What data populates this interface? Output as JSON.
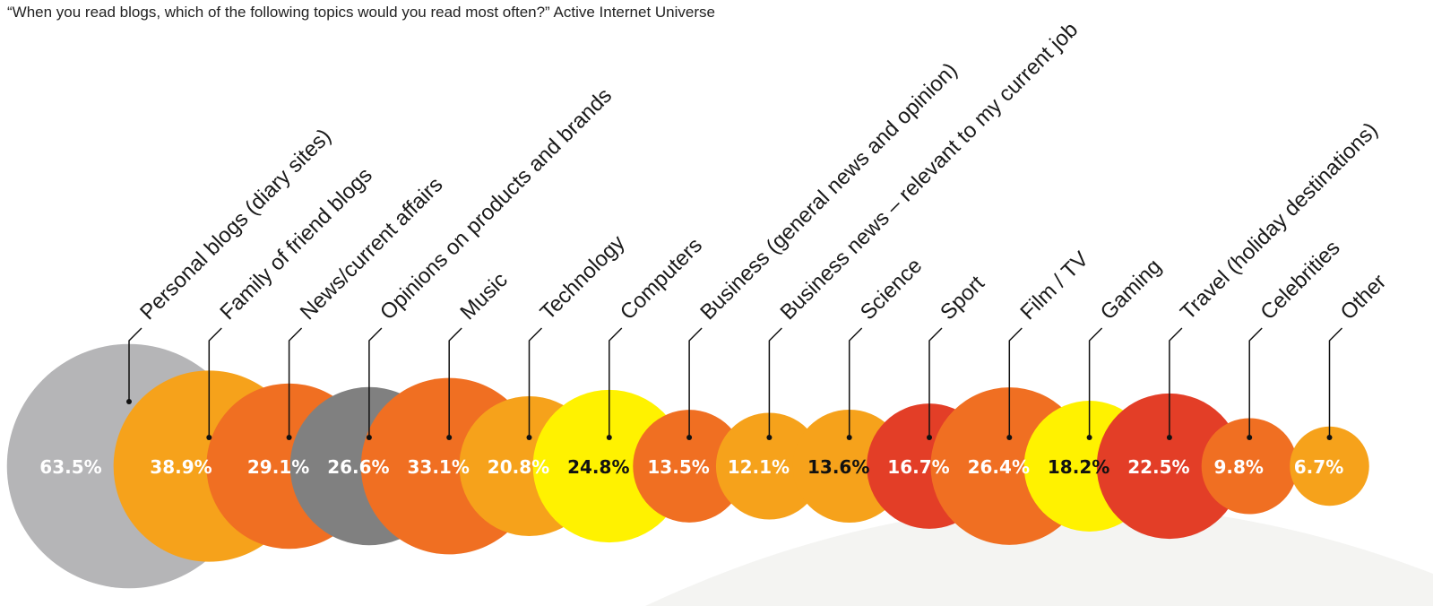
{
  "chart_data": {
    "type": "bubble",
    "title": "“When you read blogs, which of the following topics would you read most often?” Active Internet Universe",
    "unit": "%",
    "categories": [
      "Personal blogs (diary sites)",
      "Family of friend blogs",
      "News/current affairs",
      "Opinions on products and brands",
      "Music",
      "Technology",
      "Computers",
      "Business (general news and opinion)",
      "Business news – relevant to my current job",
      "Science",
      "Sport",
      "Film / TV",
      "Gaming",
      "Travel (holiday destinations)",
      "Celebrities",
      "Other"
    ],
    "values": [
      63.5,
      38.9,
      29.1,
      26.6,
      33.1,
      20.8,
      24.8,
      13.5,
      12.1,
      13.6,
      16.7,
      26.4,
      18.2,
      22.5,
      9.8,
      6.7
    ],
    "value_labels": [
      "63.5%",
      "38.9%",
      "29.1%",
      "26.6%",
      "33.1%",
      "20.8%",
      "24.8%",
      "13.5%",
      "12.1%",
      "13.6%",
      "16.7%",
      "26.4%",
      "18.2%",
      "22.5%",
      "9.8%",
      "6.7%"
    ],
    "colors": [
      "#b5b5b7",
      "#f6a21b",
      "#f06f22",
      "#808080",
      "#f06f22",
      "#f6a21b",
      "#fff200",
      "#f06f22",
      "#f6a21b",
      "#f6a21b",
      "#e33e27",
      "#f06f22",
      "#fff200",
      "#e33e27",
      "#f06f22",
      "#f6a21b"
    ],
    "label_colors": [
      "#ffffff",
      "#ffffff",
      "#ffffff",
      "#ffffff",
      "#ffffff",
      "#ffffff",
      "#111111",
      "#ffffff",
      "#ffffff",
      "#111111",
      "#ffffff",
      "#ffffff",
      "#111111",
      "#ffffff",
      "#ffffff",
      "#ffffff"
    ],
    "background_arc_color": "#f4f4f2"
  }
}
